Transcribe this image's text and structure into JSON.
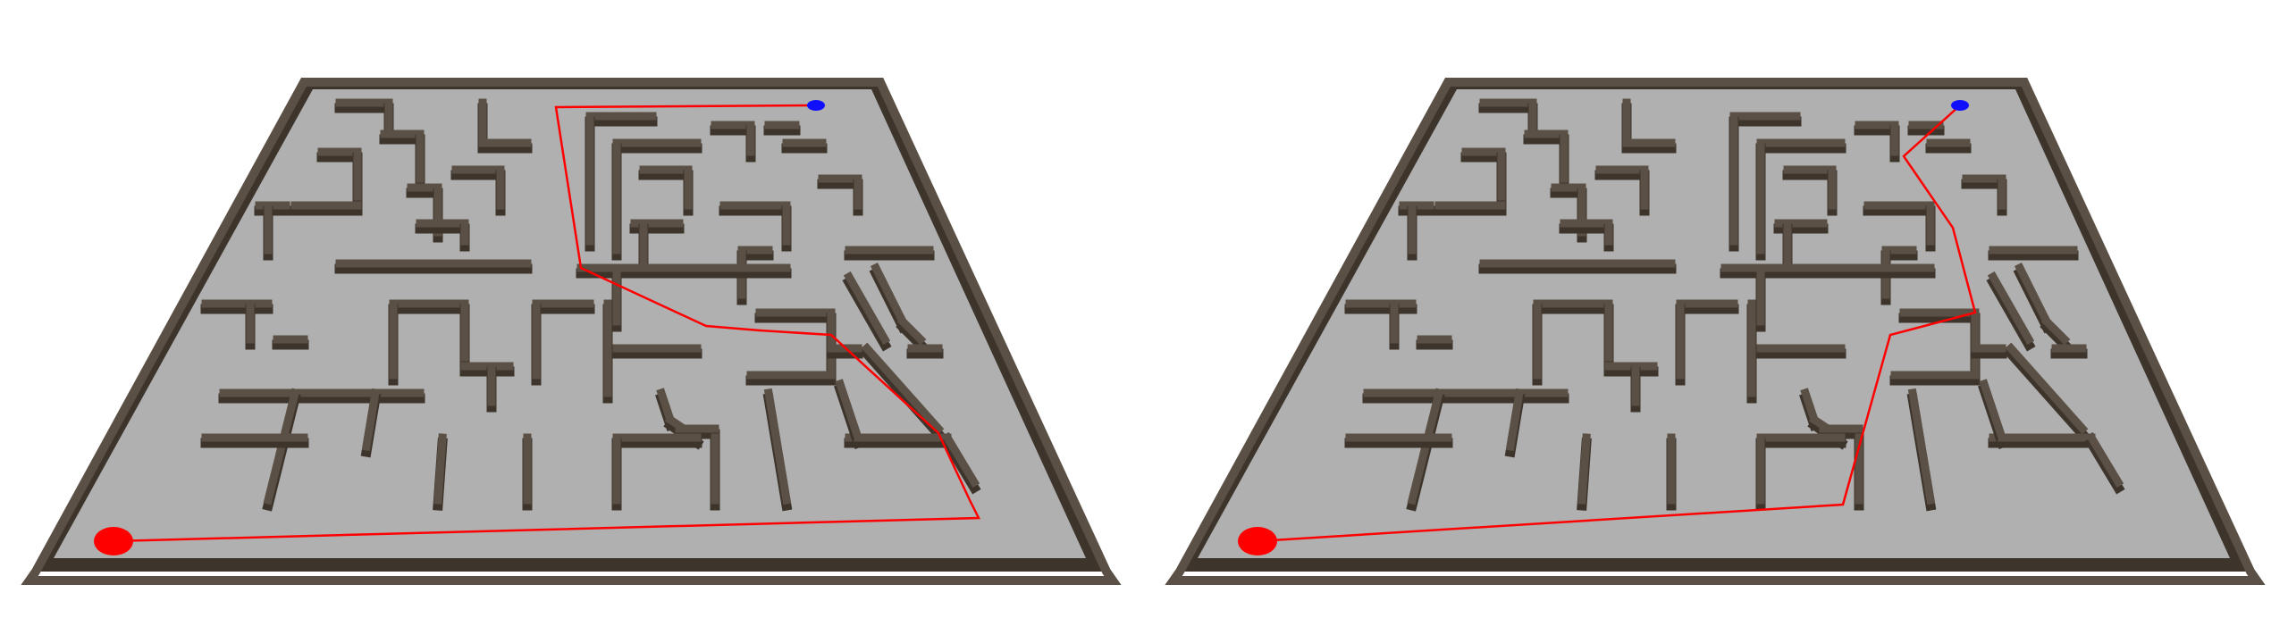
{
  "scene": {
    "background_color": "#ffffff",
    "board_color": "#b0b0b0",
    "wall_top_color": "#5b5045",
    "wall_side_color": "#3d342c",
    "path_color": "#ff0000",
    "start_marker_color": "#ff0000",
    "goal_marker_color": "#1010ff"
  },
  "panels": [
    {
      "id": "left",
      "description_key": "route-a"
    },
    {
      "id": "right",
      "description_key": "route-b"
    }
  ]
}
